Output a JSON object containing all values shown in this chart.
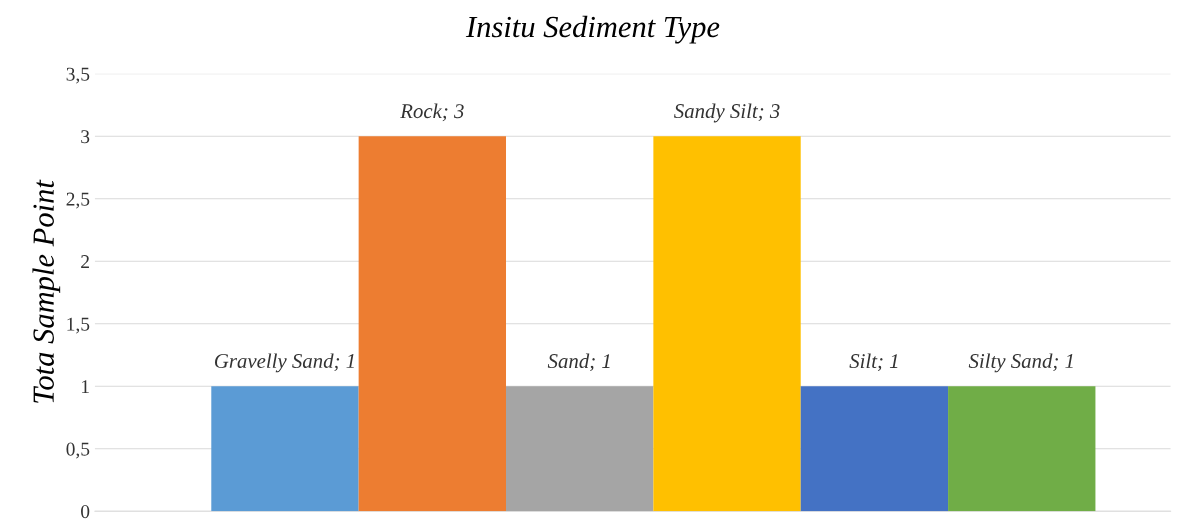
{
  "chart_data": {
    "type": "bar",
    "title": "Insitu Sediment Type",
    "ylabel": "Tota Sample Point",
    "categories": [
      null,
      null,
      null,
      null,
      null,
      null
    ],
    "values": [
      1,
      3,
      1,
      3,
      1,
      1
    ],
    "colors": [
      "#5b9bd5",
      "#ed7d31",
      "#a5a5a5",
      "#ffc000",
      "#4472c4",
      "#70ad47"
    ],
    "value_labels": [
      "Gravelly Sand; 1",
      "Rock; 3",
      "Sand; 1",
      "Sandy Silt; 3",
      "Silt; 1",
      "Silty Sand; 1"
    ],
    "ylim": [
      0,
      3.5
    ],
    "yticks": [
      0,
      {
        "value": 0.5,
        "label": "0,5"
      },
      1,
      {
        "value": 1.5,
        "label": "1,5"
      },
      2,
      {
        "value": 2.5,
        "label": "2,5"
      },
      3,
      {
        "value": 3.5,
        "label": "3,5"
      }
    ],
    "grid": "y",
    "legend": false
  }
}
